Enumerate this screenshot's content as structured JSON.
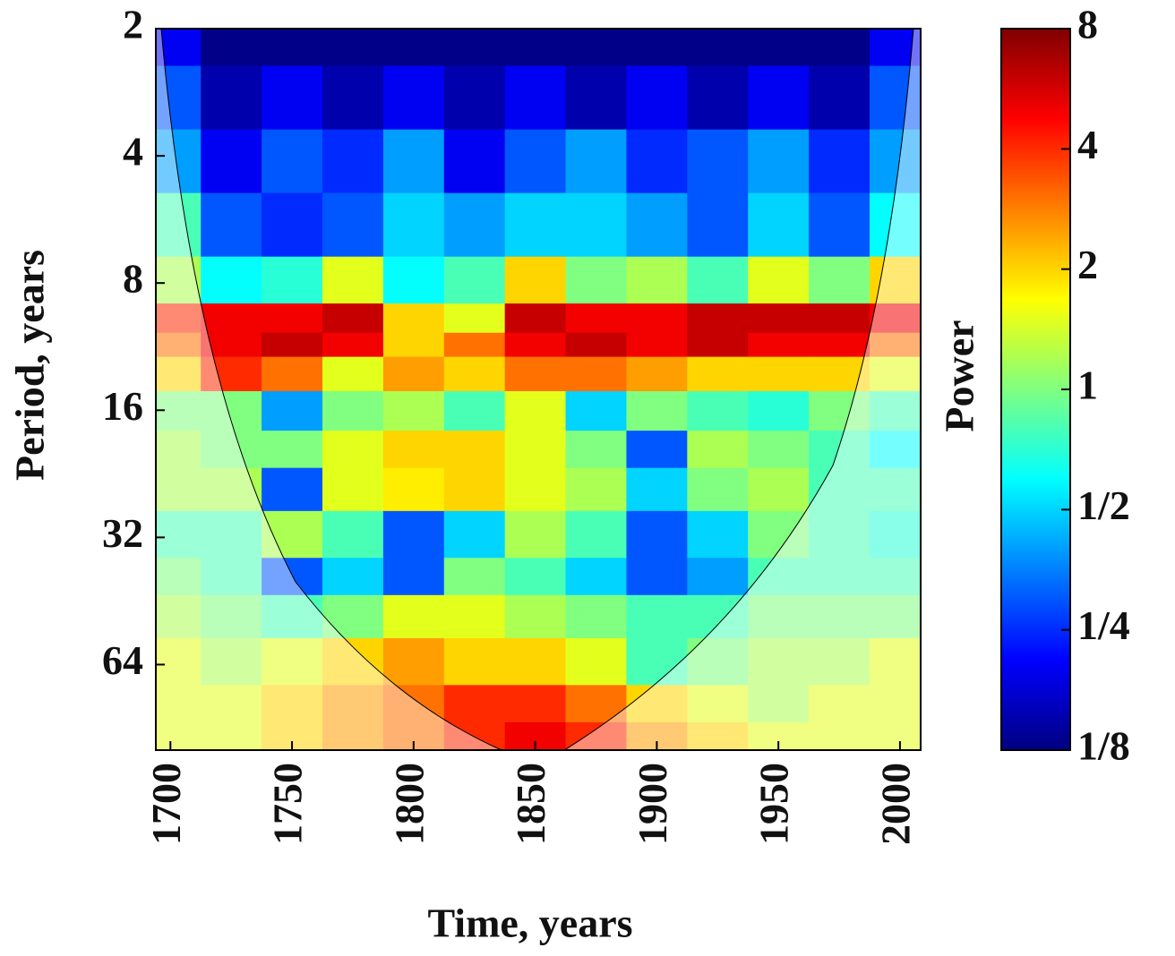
{
  "chart_data": {
    "type": "heatmap",
    "xlabel": "Time, years",
    "ylabel": "Period, years",
    "xlim": [
      1694,
      2008.5
    ],
    "xticks": [
      1700,
      1750,
      1800,
      1850,
      1900,
      1950,
      2000
    ],
    "ylim": [
      2,
      102
    ],
    "ylog": true,
    "yreverse": true,
    "yticks": [
      2,
      4,
      8,
      16,
      32,
      64
    ],
    "colorbar": {
      "label": "Power",
      "lim": [
        0.125,
        8
      ],
      "log": true,
      "colormap": "jet",
      "ticks": [
        {
          "value": 0.125,
          "label": "1/8"
        },
        {
          "value": 0.25,
          "label": "1/4"
        },
        {
          "value": 0.5,
          "label": "1/2"
        },
        1,
        2,
        4,
        8
      ]
    },
    "heatmap": {
      "x": [
        1700,
        1725,
        1750,
        1775,
        1800,
        1825,
        1850,
        1875,
        1900,
        1925,
        1950,
        1975,
        2000
      ],
      "y": [
        2,
        3,
        4,
        6,
        8,
        10,
        11,
        13,
        16,
        20,
        24,
        32,
        40,
        48,
        64,
        80,
        96
      ],
      "z": [
        [
          0.2,
          0.13,
          0.13,
          0.13,
          0.13,
          0.13,
          0.13,
          0.13,
          0.13,
          0.13,
          0.13,
          0.13,
          0.2
        ],
        [
          0.3,
          0.15,
          0.2,
          0.15,
          0.2,
          0.15,
          0.2,
          0.15,
          0.2,
          0.15,
          0.2,
          0.15,
          0.3
        ],
        [
          0.4,
          0.2,
          0.3,
          0.25,
          0.4,
          0.2,
          0.3,
          0.4,
          0.25,
          0.3,
          0.4,
          0.25,
          0.4
        ],
        [
          0.8,
          0.3,
          0.25,
          0.3,
          0.5,
          0.4,
          0.5,
          0.5,
          0.4,
          0.3,
          0.5,
          0.3,
          0.6
        ],
        [
          1.2,
          0.6,
          0.7,
          1.5,
          0.6,
          0.8,
          2,
          1,
          1.2,
          0.8,
          1.5,
          1,
          2
        ],
        [
          4,
          5,
          5,
          6,
          2,
          1.5,
          6,
          5,
          5,
          6,
          6,
          6,
          5
        ],
        [
          3,
          5,
          6,
          5,
          2,
          3,
          5,
          6,
          5,
          6,
          5,
          5,
          3
        ],
        [
          2,
          4,
          3,
          1.5,
          2.5,
          2,
          3,
          3,
          2.5,
          2,
          2,
          2,
          1.5
        ],
        [
          1,
          1,
          0.4,
          1,
          1.2,
          0.8,
          1.5,
          0.5,
          1,
          0.8,
          0.7,
          1,
          0.8
        ],
        [
          1.2,
          1,
          1,
          1.5,
          2,
          2,
          1.5,
          1,
          0.3,
          1.2,
          1,
          0.8,
          0.6
        ],
        [
          1.2,
          1.2,
          0.3,
          1.5,
          1.8,
          2,
          1.5,
          1.2,
          0.5,
          1,
          1.2,
          0.8,
          0.8
        ],
        [
          0.8,
          0.8,
          1.2,
          0.8,
          0.3,
          0.5,
          1.2,
          0.8,
          0.3,
          0.5,
          1,
          0.8,
          0.7
        ],
        [
          1,
          0.8,
          0.3,
          0.5,
          0.3,
          1,
          0.8,
          0.5,
          0.3,
          0.4,
          0.8,
          0.8,
          0.8
        ],
        [
          1.2,
          1,
          0.8,
          1,
          1.5,
          1.5,
          1.2,
          1,
          0.8,
          0.8,
          1,
          1,
          1
        ],
        [
          1.5,
          1.2,
          1.5,
          2,
          2.5,
          2,
          2,
          1.5,
          0.8,
          1,
          1.2,
          1.2,
          1.5
        ],
        [
          1.5,
          1.5,
          2,
          2.5,
          3,
          4,
          4,
          3,
          2,
          1.5,
          1.2,
          1.5,
          1.5
        ],
        [
          1.5,
          1.5,
          2,
          2.5,
          3,
          4,
          5,
          4,
          2.5,
          2,
          1.5,
          1.5,
          1.5
        ]
      ]
    }
  }
}
